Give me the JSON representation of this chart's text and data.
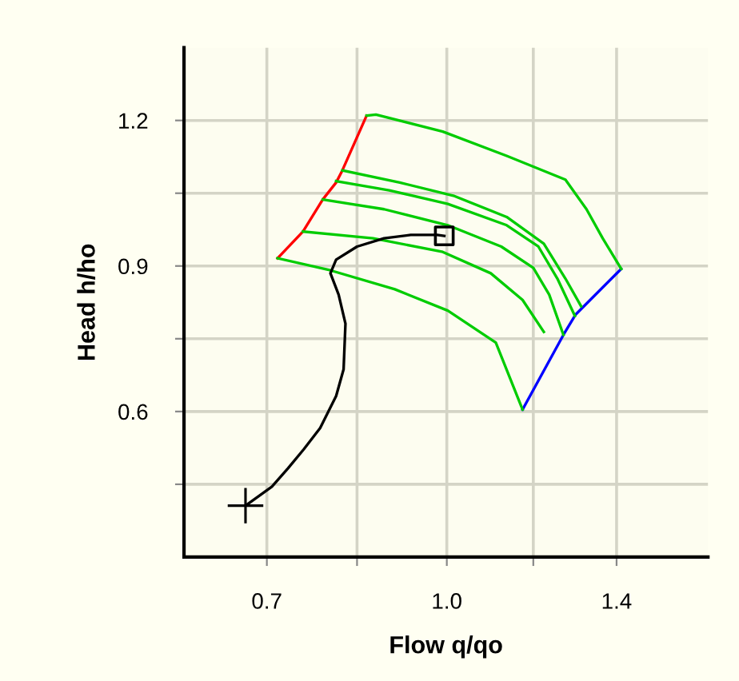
{
  "chart_data": {
    "type": "line",
    "xlabel": "Flow q/qo",
    "ylabel": "Head h/ho",
    "log": "x",
    "xlim": [
      0.594,
      1.678
    ],
    "xticks": [
      0.7,
      {
        "value": 0.837,
        "label": null
      },
      {
        "value": 1.0,
        "label": "1.0"
      },
      {
        "value": 1.187,
        "label": null
      },
      1.4
    ],
    "ylim": [
      0.3,
      1.35
    ],
    "yticks": [
      {
        "value": 0.45,
        "label": null
      },
      0.6,
      {
        "value": 0.75,
        "label": null
      },
      0.9,
      {
        "value": 1.05,
        "label": null
      },
      1.2
    ],
    "grid": true,
    "marker": "none",
    "line_style": "solid",
    "series": [
      {
        "color": "#ff0000",
        "x": [
          0.715,
          0.752,
          0.782,
          0.803,
          0.813,
          0.853
        ],
        "values": [
          0.916,
          0.971,
          1.037,
          1.072,
          1.097,
          1.21
        ]
      },
      {
        "color": "#0000ff",
        "x": [
          1.162,
          1.26,
          1.291,
          1.413
        ],
        "values": [
          0.604,
          0.758,
          0.8,
          0.894
        ]
      },
      {
        "color": "#00cc00",
        "x": [
          0.853,
          0.869,
          0.992,
          1.126,
          1.265,
          1.319,
          1.362,
          1.413
        ],
        "values": [
          1.21,
          1.212,
          1.177,
          1.127,
          1.078,
          1.017,
          0.957,
          0.894
        ]
      },
      {
        "color": "#00cc00",
        "x": [
          0.813,
          0.911,
          1.013,
          1.126,
          1.212,
          1.265,
          1.305
        ],
        "values": [
          1.097,
          1.072,
          1.045,
          1.001,
          0.946,
          0.874,
          0.817
        ]
      },
      {
        "color": "#00cc00",
        "x": [
          0.803,
          0.892,
          1.002,
          1.126,
          1.199,
          1.245,
          1.289
        ],
        "values": [
          1.075,
          1.056,
          1.028,
          0.984,
          0.94,
          0.874,
          0.797
        ]
      },
      {
        "color": "#00cc00",
        "x": [
          0.782,
          0.883,
          1.002,
          1.114,
          1.187,
          1.225,
          1.26
        ],
        "values": [
          1.037,
          1.017,
          0.984,
          0.94,
          0.896,
          0.841,
          0.758
        ]
      },
      {
        "color": "#00cc00",
        "x": [
          0.752,
          0.864,
          0.992,
          1.091,
          1.162,
          1.212
        ],
        "values": [
          0.971,
          0.957,
          0.929,
          0.885,
          0.83,
          0.764
        ]
      },
      {
        "color": "#00cc00",
        "x": [
          0.715,
          0.794,
          0.902,
          1.002,
          1.102,
          1.162
        ],
        "values": [
          0.916,
          0.891,
          0.852,
          0.808,
          0.742,
          0.604
        ]
      },
      {
        "color": "#000000",
        "x": [
          0.671,
          0.707,
          0.73,
          0.753,
          0.778,
          0.803,
          0.815,
          0.818,
          0.807,
          0.794,
          0.803,
          0.837,
          0.883,
          0.931,
          0.981,
          0.995
        ],
        "values": [
          0.406,
          0.445,
          0.483,
          0.522,
          0.566,
          0.632,
          0.687,
          0.781,
          0.841,
          0.885,
          0.913,
          0.94,
          0.957,
          0.964,
          0.964,
          0.962
        ]
      },
      {
        "type": "scatter",
        "marker": "cross",
        "color": "#000000",
        "x": [
          0.671
        ],
        "values": [
          0.406
        ]
      },
      {
        "type": "scatter",
        "marker": "square",
        "color": "#000000",
        "x": [
          0.995
        ],
        "values": [
          0.962
        ]
      }
    ]
  }
}
